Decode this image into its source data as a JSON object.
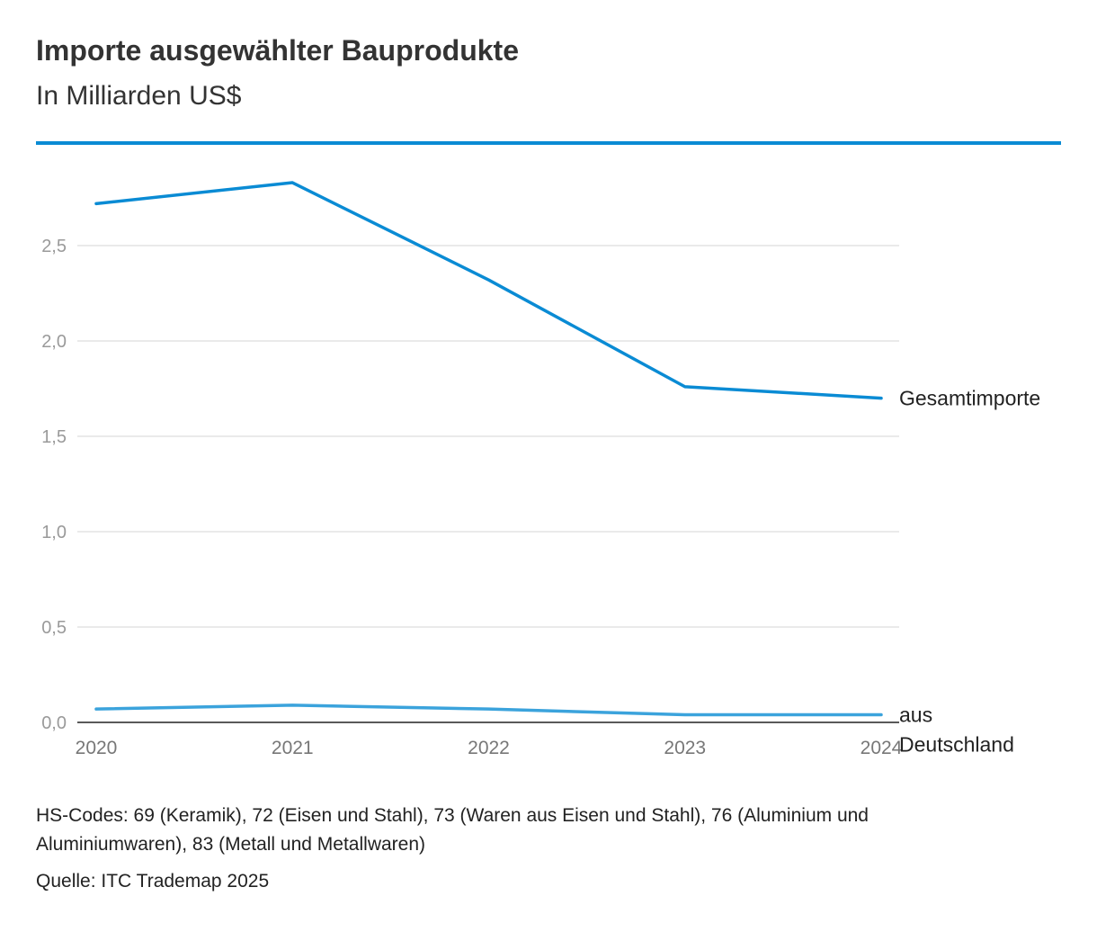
{
  "title": "Importe ausgewählter Bauprodukte",
  "subtitle": "In Milliarden US$",
  "colors": {
    "accent": "#0a8bd4",
    "series_total": "#0a8bd4",
    "series_de": "#3ba3dc",
    "grid": "#e3e3e3",
    "axis": "#222222"
  },
  "chart_data": {
    "type": "line",
    "title": "Importe ausgewählter Bauprodukte",
    "xlabel": "",
    "ylabel": "In Milliarden US$",
    "categories": [
      "2020",
      "2021",
      "2022",
      "2023",
      "2024"
    ],
    "ylim": [
      0,
      2.9
    ],
    "yticks": [
      0,
      0.5,
      1.0,
      1.5,
      2.0,
      2.5
    ],
    "ytick_labels": [
      "0,0",
      "0,5",
      "1,0",
      "1,5",
      "2,0",
      "2,5"
    ],
    "grid": true,
    "series": [
      {
        "name": "Gesamtimporte",
        "label_lines": [
          "Gesamtimporte"
        ],
        "values": [
          2.72,
          2.83,
          2.32,
          1.76,
          1.7
        ]
      },
      {
        "name": "aus Deutschland",
        "label_lines": [
          "aus",
          "Deutschland"
        ],
        "values": [
          0.07,
          0.09,
          0.07,
          0.04,
          0.04
        ]
      }
    ]
  },
  "notes": {
    "hs_codes_line1": "HS-Codes: 69 (Keramik), 72 (Eisen und Stahl), 73 (Waren aus Eisen und Stahl), 76 (Aluminium und",
    "hs_codes_line2": "Aluminiumwaren), 83 (Metall und Metallwaren)",
    "source": "Quelle: ITC Trademap 2025"
  }
}
